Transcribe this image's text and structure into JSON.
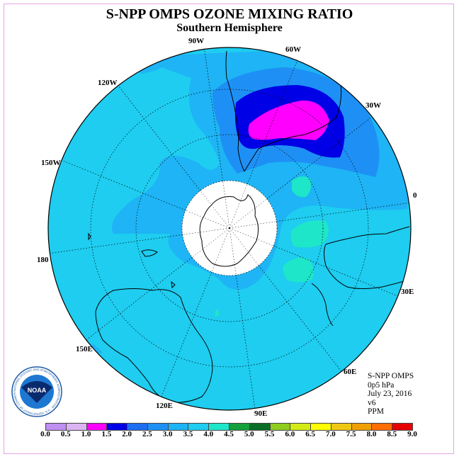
{
  "title": "S-NPP OMPS OZONE MIXING RATIO",
  "subtitle": "Southern Hemisphere",
  "info": {
    "product": "S-NPP OMPS",
    "level": "0p5 hPa",
    "date": "July 23, 2016",
    "version": "v6",
    "units": "PPM"
  },
  "longitude_labels": [
    "90W",
    "60W",
    "30W",
    "0",
    "30E",
    "60E",
    "90E",
    "120E",
    "150E",
    "180",
    "150W",
    "120W"
  ],
  "legend": {
    "ticks": [
      "0.0",
      "0.5",
      "1.0",
      "1.5",
      "2.0",
      "2.5",
      "3.0",
      "3.5",
      "4.0",
      "4.5",
      "5.0",
      "5.5",
      "6.0",
      "6.5",
      "7.0",
      "7.5",
      "8.0",
      "8.5",
      "9.0"
    ],
    "colors": [
      "#bf8ff2",
      "#dcb3f2",
      "#ff00ff",
      "#0000e6",
      "#1e6ef0",
      "#1e90f5",
      "#1eb4f5",
      "#1ecdf0",
      "#1ee6c8",
      "#14a03c",
      "#0a6e28",
      "#8ccd1e",
      "#d2eb14",
      "#ffff00",
      "#f0c814",
      "#f0a000",
      "#ff6e00",
      "#e60000",
      "#825a3c"
    ]
  },
  "logo_text": {
    "center": "NOAA",
    "ring": "NATIONAL OCEANIC AND ATMOSPHERIC ADMINISTRATION · U.S. DEPARTMENT OF COMMERCE"
  }
}
